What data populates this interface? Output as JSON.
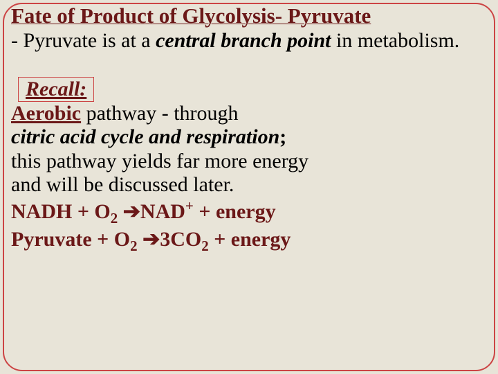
{
  "colors": {
    "background": "#e8e4d8",
    "accent_dark_red": "#6b1818",
    "border_red": "#c44",
    "text_black": "#000000"
  },
  "typography": {
    "title_fontsize": 31,
    "body_fontsize": 30,
    "font_family": "Georgia, Times New Roman, serif"
  },
  "title": "Fate of Product of Glycolysis- Pyruvate",
  "intro_prefix": "- Pyruvate is at a ",
  "intro_emph": "central branch point",
  "intro_suffix": " in metabolism.",
  "recall_label": "Recall:",
  "aerobic_word": "Aerobic",
  "aerobic_rest": " pathway - through",
  "citric_line": "citric acid cycle and respiration",
  "citric_semicolon": ";",
  "more1": "this pathway yields far more energy",
  "more2": "and will be discussed later.",
  "eq1_left": "NADH + O",
  "eq1_sub1": "2",
  "eq1_arrow": "  ➔",
  "eq1_mid": "NAD",
  "eq1_sup": "+",
  "eq1_right": " + energy",
  "eq2_left": "Pyruvate + O",
  "eq2_sub1": "2",
  "eq2_arrow": "  ➔",
  "eq2_mid": "3CO",
  "eq2_sub2": "2",
  "eq2_right": " + energy"
}
